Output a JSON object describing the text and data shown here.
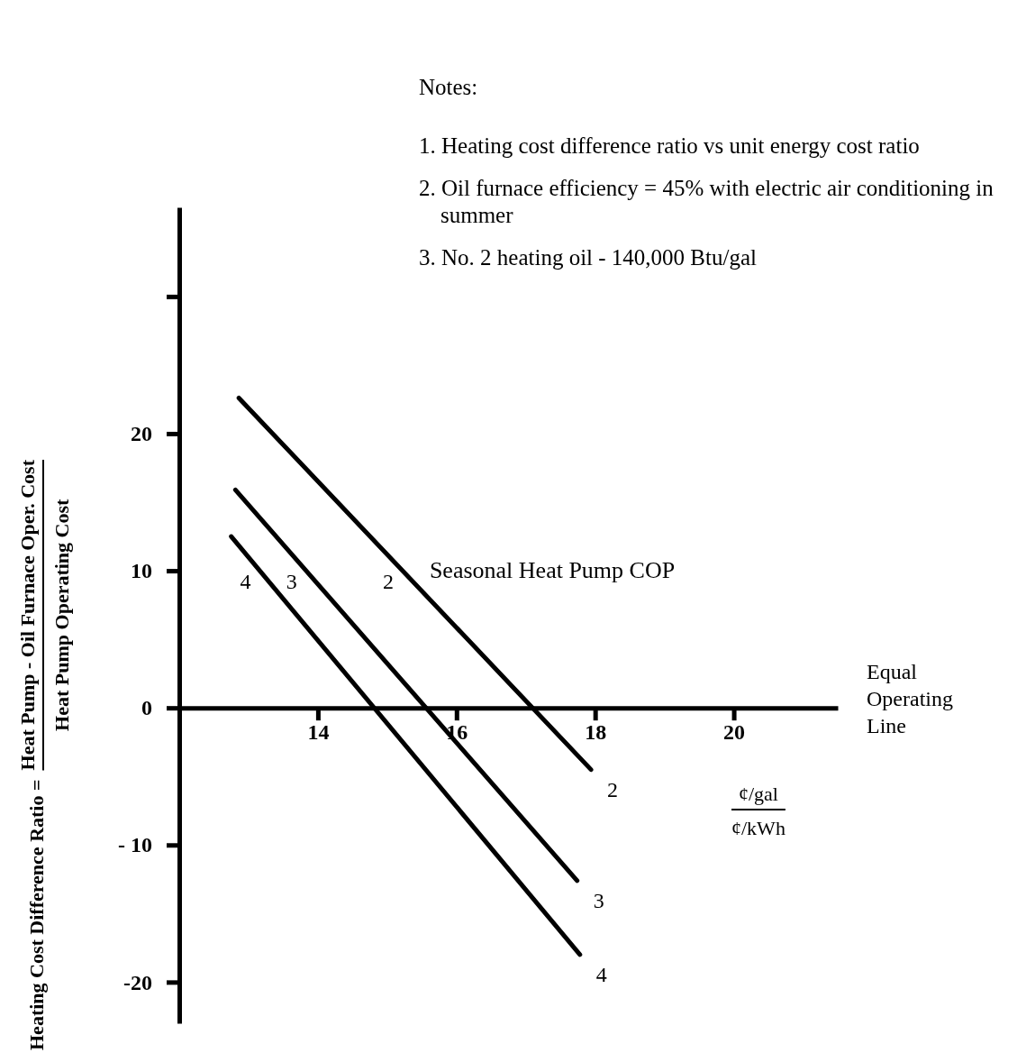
{
  "chart_data": {
    "type": "line",
    "xlabel": "¢/gal\n¢/kWh",
    "ylabel": "Heating Cost Difference Ratio = Heat Pump - Oil Furnace Oper. Cost\nHeat Pump Operating Cost",
    "legend_title": "Seasonal Heat Pump COP",
    "xlim": [
      12,
      21.5
    ],
    "xticks": [
      14,
      16,
      18,
      20
    ],
    "ylim": [
      -23,
      36.5
    ],
    "yticks": [
      {
        "value": 30,
        "label": null
      },
      20,
      10,
      0,
      {
        "value": -10,
        "label": "- 10"
      },
      -20
    ],
    "series": [
      {
        "name": "2",
        "color": "#000000",
        "x": [
          12.86,
          17.94
        ],
        "values": [
          22.6,
          -4.5
        ]
      },
      {
        "name": "3",
        "color": "#000000",
        "x": [
          12.81,
          17.74
        ],
        "values": [
          15.9,
          -12.6
        ]
      },
      {
        "name": "4",
        "color": "#000000",
        "x": [
          12.75,
          17.78
        ],
        "values": [
          12.5,
          -18.0
        ]
      }
    ],
    "annotations": [
      "Notes:",
      "1. Heating cost difference ratio vs unit energy cost ratio",
      "2. Oil furnace efficiency = 45% with electric air conditioning in summer",
      "3. No. 2 heating oil - 140,000 Btu/gal",
      "Equal Operating Line"
    ],
    "grid": false,
    "legend": "left",
    "marker": "none",
    "line_style": "solid"
  }
}
